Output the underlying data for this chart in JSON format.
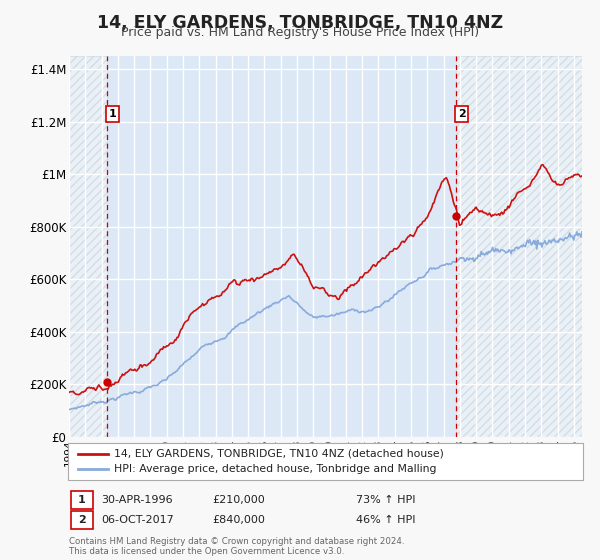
{
  "title": "14, ELY GARDENS, TONBRIDGE, TN10 4NZ",
  "subtitle": "Price paid vs. HM Land Registry's House Price Index (HPI)",
  "bg_color": "#f8f8f8",
  "plot_bg_color": "#dce8f5",
  "grid_color": "#ffffff",
  "xlim": [
    1994.0,
    2025.5
  ],
  "ylim": [
    0,
    1450000
  ],
  "yticks": [
    0,
    200000,
    400000,
    600000,
    800000,
    1000000,
    1200000,
    1400000
  ],
  "ytick_labels": [
    "£0",
    "£200K",
    "£400K",
    "£600K",
    "£800K",
    "£1M",
    "£1.2M",
    "£1.4M"
  ],
  "xticks": [
    1994,
    1995,
    1996,
    1997,
    1998,
    1999,
    2000,
    2001,
    2002,
    2003,
    2004,
    2005,
    2006,
    2007,
    2008,
    2009,
    2010,
    2011,
    2012,
    2013,
    2014,
    2015,
    2016,
    2017,
    2018,
    2019,
    2020,
    2021,
    2022,
    2023,
    2024,
    2025
  ],
  "sale1_date": 1996.33,
  "sale1_price": 210000,
  "sale1_label": "1",
  "sale2_date": 2017.77,
  "sale2_price": 840000,
  "sale2_label": "2",
  "vline_color": "#cc0000",
  "sale_dot_color": "#cc0000",
  "red_line_color": "#cc1111",
  "blue_line_color": "#88aadd",
  "legend_line1": "14, ELY GARDENS, TONBRIDGE, TN10 4NZ (detached house)",
  "legend_line2": "HPI: Average price, detached house, Tonbridge and Malling",
  "annotation1_date": "30-APR-1996",
  "annotation1_price": "£210,000",
  "annotation1_hpi": "73% ↑ HPI",
  "annotation2_date": "06-OCT-2017",
  "annotation2_price": "£840,000",
  "annotation2_hpi": "46% ↑ HPI",
  "footer1": "Contains HM Land Registry data © Crown copyright and database right 2024.",
  "footer2": "This data is licensed under the Open Government Licence v3.0."
}
